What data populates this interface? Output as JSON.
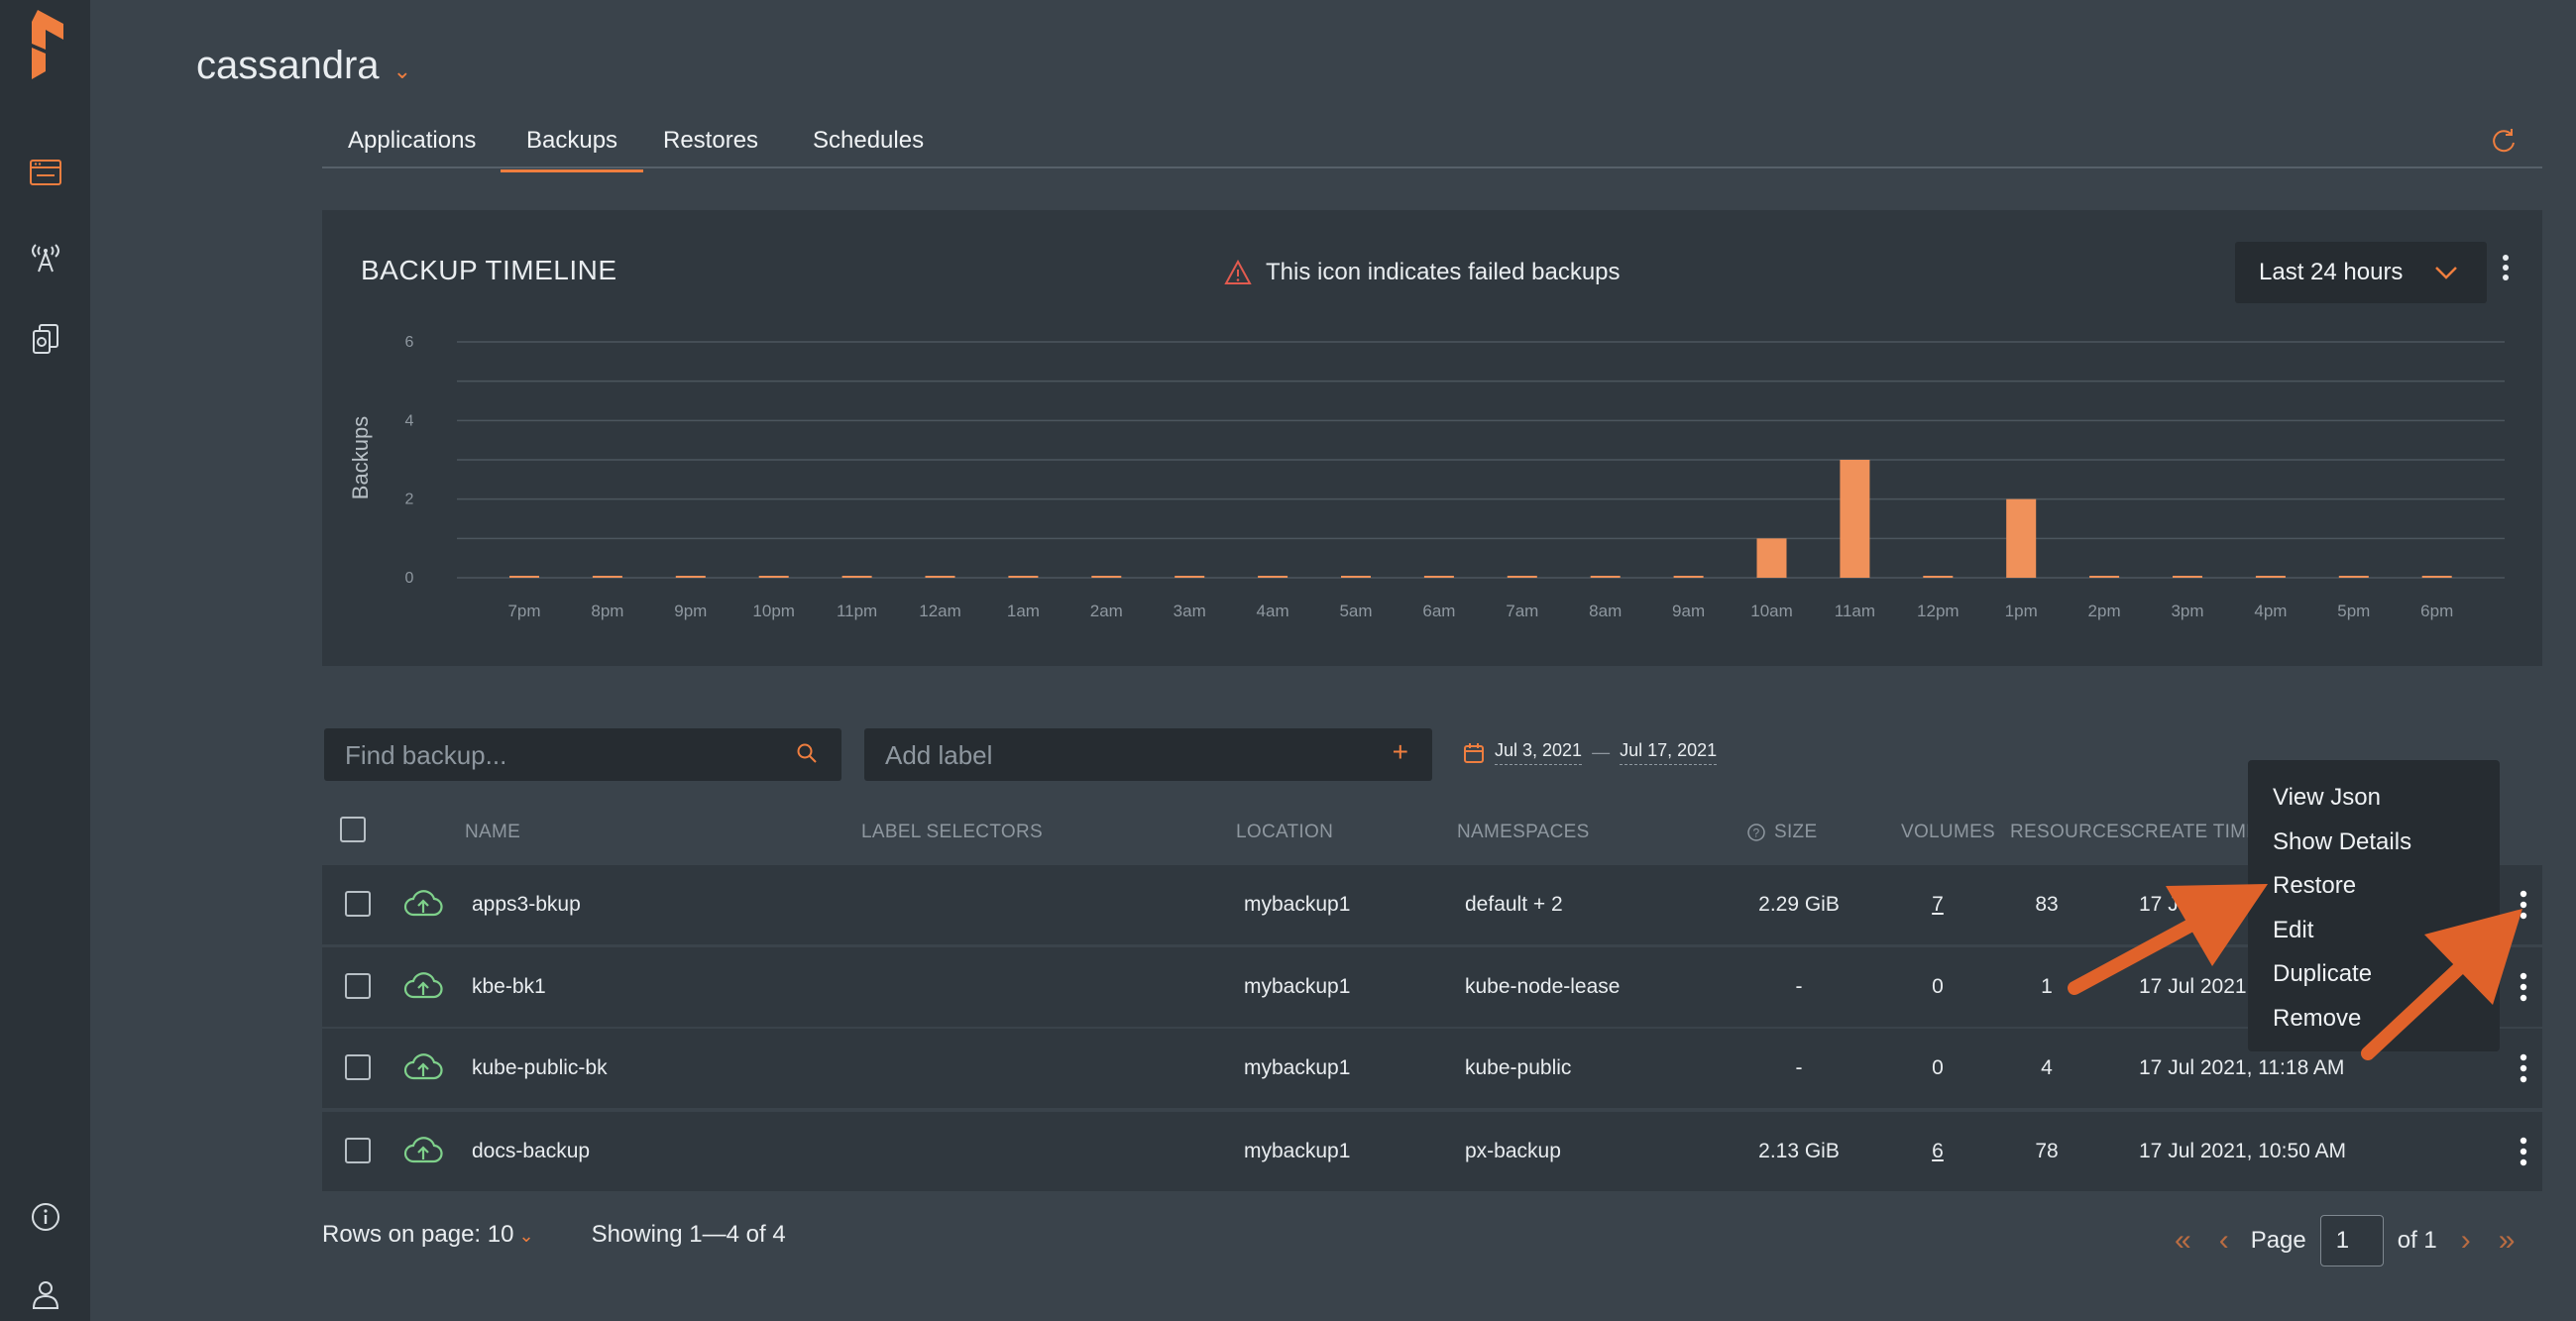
{
  "header": {
    "app_name": "cassandra"
  },
  "tabs": [
    "Applications",
    "Backups",
    "Restores",
    "Schedules"
  ],
  "active_tab": "Backups",
  "timeline": {
    "title": "BACKUP TIMELINE",
    "failed_note": "This icon indicates failed backups",
    "range_label": "Last 24 hours"
  },
  "chart_data": {
    "type": "bar",
    "ylabel": "Backups",
    "xlabel": "",
    "ylim": [
      0,
      6
    ],
    "yticks": [
      0,
      2,
      4,
      6
    ],
    "grid": true,
    "categories": [
      "7pm",
      "8pm",
      "9pm",
      "10pm",
      "11pm",
      "12am",
      "1am",
      "2am",
      "3am",
      "4am",
      "5am",
      "6am",
      "7am",
      "8am",
      "9am",
      "10am",
      "11am",
      "12pm",
      "1pm",
      "2pm",
      "3pm",
      "4pm",
      "5pm",
      "6pm"
    ],
    "values": [
      0,
      0,
      0,
      0,
      0,
      0,
      0,
      0,
      0,
      0,
      0,
      0,
      0,
      0,
      0,
      1,
      3,
      0,
      2,
      0,
      0,
      0,
      0,
      0
    ],
    "bar_color": "#f0915a"
  },
  "filters": {
    "search_placeholder": "Find backup...",
    "label_placeholder": "Add label",
    "date_from": "Jul 3, 2021",
    "date_sep": "—",
    "date_to": "Jul 17, 2021"
  },
  "table": {
    "columns": {
      "name": "NAME",
      "label_selectors": "LABEL SELECTORS",
      "location": "LOCATION",
      "namespaces": "NAMESPACES",
      "size": "SIZE",
      "volumes": "VOLUMES",
      "resources": "RESOURCES",
      "create_time": "CREATE TIME"
    },
    "rows": [
      {
        "name": "apps3-bkup",
        "location": "mybackup1",
        "namespaces": "default + 2",
        "size": "2.29 GiB",
        "volumes": "7",
        "resources": "83",
        "create_time": "17 Jul"
      },
      {
        "name": "kbe-bk1",
        "location": "mybackup1",
        "namespaces": "kube-node-lease",
        "size": "-",
        "volumes": "0",
        "resources": "1",
        "create_time": "17 Jul 2021, 1"
      },
      {
        "name": "kube-public-bk",
        "location": "mybackup1",
        "namespaces": "kube-public",
        "size": "-",
        "volumes": "0",
        "resources": "4",
        "create_time": "17 Jul 2021, 11:18 AM"
      },
      {
        "name": "docs-backup",
        "location": "mybackup1",
        "namespaces": "px-backup",
        "size": "2.13 GiB",
        "volumes": "6",
        "resources": "78",
        "create_time": "17 Jul 2021, 10:50 AM"
      }
    ]
  },
  "context_menu": [
    "View Json",
    "Show Details",
    "Restore",
    "Edit",
    "Duplicate",
    "Remove"
  ],
  "footer": {
    "rows_label": "Rows on page: 10",
    "showing": "Showing 1—4 of 4",
    "page_label": "Page",
    "page_value": "1",
    "of_label": "of 1"
  },
  "colors": {
    "accent": "#ef7e3f",
    "success": "#7fd18b"
  }
}
